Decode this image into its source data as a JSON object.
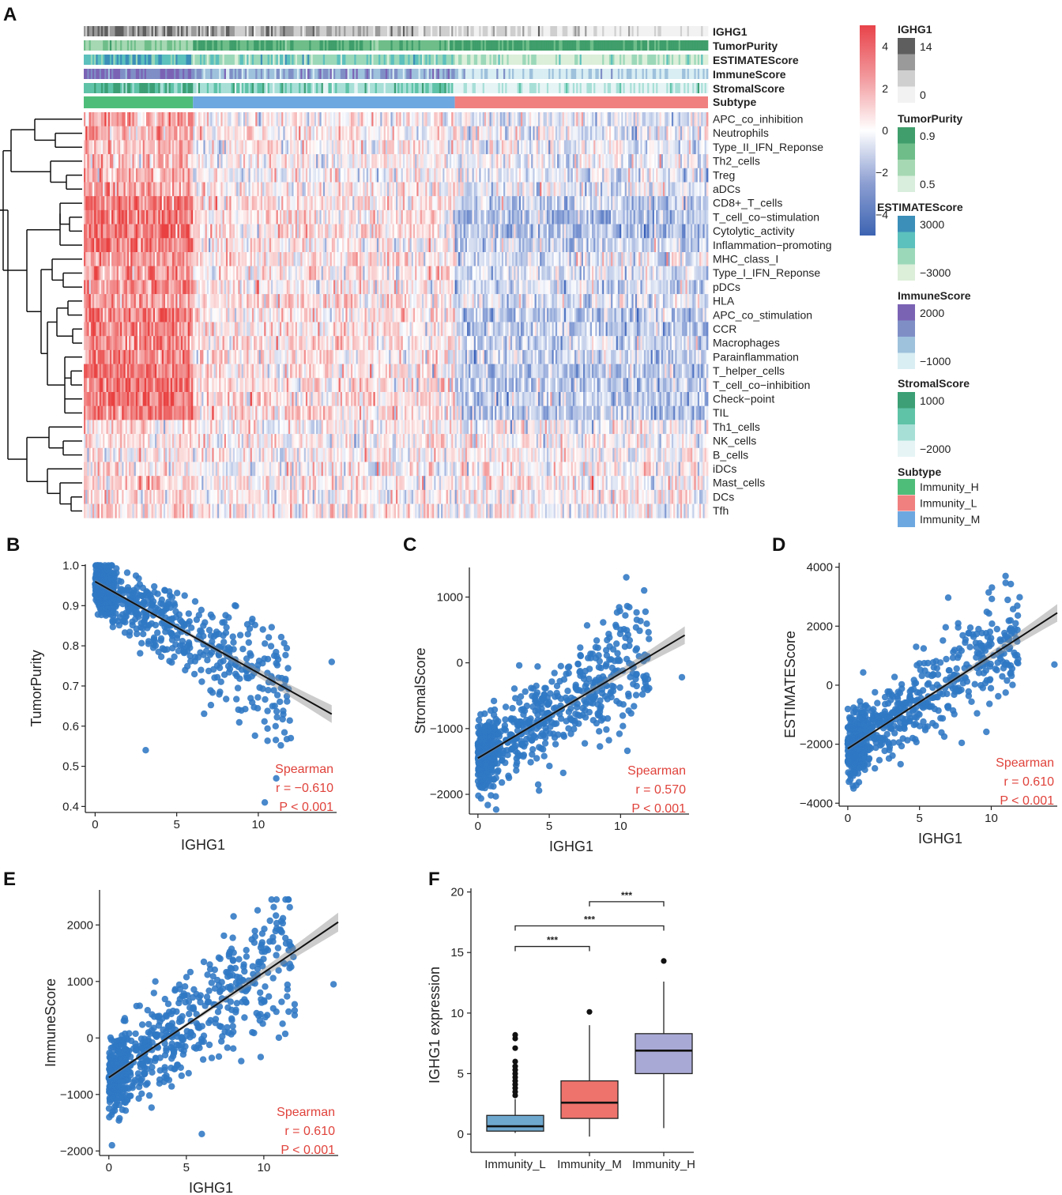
{
  "chart_data": [
    {
      "panel": "A",
      "type": "heatmap",
      "annotation_tracks": [
        "IGHG1",
        "TumorPurity",
        "ESTIMATEScore",
        "ImmuneScore",
        "StromalScore",
        "Subtype"
      ],
      "rows": [
        "APC_co_inhibition",
        "Neutrophils",
        "Type_II_IFN_Reponse",
        "Th2_cells",
        "Treg",
        "aDCs",
        "CD8+_T_cells",
        "T_cell_co−stimulation",
        "Cytolytic_activity",
        "Inflammation−promoting",
        "MHC_class_I",
        "Type_I_IFN_Reponse",
        "pDCs",
        "HLA",
        "APC_co_stimulation",
        "CCR",
        "Macrophages",
        "Parainflammation",
        "T_helper_cells",
        "T_cell_co−inhibition",
        "Check−point",
        "TIL",
        "Th1_cells",
        "NK_cells",
        "B_cells",
        "iDCs",
        "Mast_cells",
        "DCs",
        "Tfh"
      ],
      "subtype_blocks": [
        {
          "name": "Immunity_H",
          "fraction": 0.176
        },
        {
          "name": "Immunity_M",
          "fraction": 0.418
        },
        {
          "name": "Immunity_L",
          "fraction": 0.406
        }
      ],
      "colorbar": {
        "ticks": [
          "4",
          "2",
          "0",
          "−2",
          "−4"
        ],
        "values": [
          4,
          2,
          0,
          -2,
          -4
        ],
        "range": [
          -5,
          5
        ]
      },
      "legends": [
        {
          "title": "IGHG1",
          "labels": [
            "14",
            "0"
          ],
          "colors": [
            "#5e5e5e",
            "#9a9a9a",
            "#cfcfcf",
            "#f2f2f2"
          ]
        },
        {
          "title": "TumorPurity",
          "labels": [
            "0.9",
            "0.5"
          ],
          "colors": [
            "#3f9e6b",
            "#6fbe8a",
            "#a6d8b3",
            "#d9eedd"
          ]
        },
        {
          "title": "ESTIMATEScore",
          "labels": [
            "3000",
            "−3000"
          ],
          "colors": [
            "#3b8fb8",
            "#5cc0bd",
            "#9bd8b9",
            "#dcefd9"
          ]
        },
        {
          "title": "ImmuneScore",
          "labels": [
            "2000",
            "−1000"
          ],
          "colors": [
            "#7b63b4",
            "#7f8fc6",
            "#9ec1dc",
            "#d9eef3"
          ]
        },
        {
          "title": "StromalScore",
          "labels": [
            "1000",
            "−2000"
          ],
          "colors": [
            "#3c9f75",
            "#5fc3a8",
            "#a7dfd7",
            "#e6f4f5"
          ]
        },
        {
          "title": "Subtype",
          "labels": [
            "Immunity_H",
            "Immunity_L",
            "Immunity_M"
          ],
          "colors": [
            "#4fbd7a",
            "#f08080",
            "#6ea8e0"
          ]
        }
      ]
    },
    {
      "panel": "B",
      "type": "scatter",
      "xlabel": "IGHG1",
      "ylabel": "TumorPurity",
      "xlim": [
        -0.6,
        14.8
      ],
      "ylim": [
        0.385,
        1.003
      ],
      "xticks": [
        0,
        5,
        10
      ],
      "yticks": [
        0.4,
        0.5,
        0.6,
        0.7,
        0.8,
        0.9,
        1.0
      ],
      "ytick_labels": [
        "0.4",
        "0.5",
        "0.6",
        "0.7",
        "0.8",
        "0.9",
        "1.0"
      ],
      "fit_line": [
        [
          0,
          0.96
        ],
        [
          14.5,
          0.63
        ]
      ],
      "points_example": [
        [
          0.2,
          0.99
        ],
        [
          1.0,
          0.95
        ],
        [
          2.0,
          0.9
        ],
        [
          3.1,
          0.54
        ],
        [
          5.2,
          0.84
        ],
        [
          10.4,
          0.41
        ],
        [
          11.1,
          0.47
        ],
        [
          14.5,
          0.76
        ]
      ],
      "annotation": {
        "method": "Spearman",
        "r": "r = −0.610",
        "p": "P < 0.001"
      }
    },
    {
      "panel": "C",
      "type": "scatter",
      "xlabel": "IGHG1",
      "ylabel": "StromalScore",
      "xlim": [
        -0.6,
        14.8
      ],
      "ylim": [
        -2300,
        1450
      ],
      "xticks": [
        0,
        5,
        10
      ],
      "yticks": [
        -2000,
        -1000,
        0,
        1000
      ],
      "ytick_labels": [
        "−2000",
        "−1000",
        "0",
        "1000"
      ],
      "fit_line": [
        [
          0,
          -1450
        ],
        [
          14.5,
          420
        ]
      ],
      "points_example": [
        [
          0.3,
          -1900
        ],
        [
          2.5,
          -900
        ],
        [
          5.0,
          -600
        ],
        [
          10.4,
          1300
        ],
        [
          14.3,
          -220
        ]
      ],
      "annotation": {
        "method": "Spearman",
        "r": "r = 0.570",
        "p": "P < 0.001"
      }
    },
    {
      "panel": "D",
      "type": "scatter",
      "xlabel": "IGHG1",
      "ylabel": "ESTIMATEScore",
      "xlim": [
        -0.6,
        14.6
      ],
      "ylim": [
        -4100,
        4150
      ],
      "xticks": [
        0,
        5,
        10
      ],
      "yticks": [
        -4000,
        -2000,
        0,
        2000,
        4000
      ],
      "ytick_labels": [
        "−4000",
        "−2000",
        "0",
        "2000",
        "4000"
      ],
      "fit_line": [
        [
          0,
          -2150
        ],
        [
          14.6,
          2450
        ]
      ],
      "points_example": [
        [
          0.4,
          -3500
        ],
        [
          3.0,
          -500
        ],
        [
          6.0,
          600
        ],
        [
          11.0,
          3700
        ],
        [
          14.4,
          700
        ]
      ],
      "annotation": {
        "method": "Spearman",
        "r": "r = 0.610",
        "p": "P < 0.001"
      }
    },
    {
      "panel": "E",
      "type": "scatter",
      "xlabel": "IGHG1",
      "ylabel": "ImmuneScore",
      "xlim": [
        -0.6,
        14.8
      ],
      "ylim": [
        -2080,
        2620
      ],
      "xticks": [
        0,
        5,
        10
      ],
      "yticks": [
        -2000,
        -1000,
        0,
        1000,
        2000
      ],
      "ytick_labels": [
        "−2000",
        "−1000",
        "0",
        "1000",
        "2000"
      ],
      "fit_line": [
        [
          0,
          -700
        ],
        [
          14.8,
          2050
        ]
      ],
      "points_example": [
        [
          0.2,
          -1900
        ],
        [
          3.0,
          1000
        ],
        [
          6.0,
          -1700
        ],
        [
          10.5,
          2450
        ],
        [
          14.5,
          950
        ]
      ],
      "annotation": {
        "method": "Spearman",
        "r": "r = 0.610",
        "p": "P < 0.001"
      }
    },
    {
      "panel": "F",
      "type": "box",
      "xlabel": "",
      "ylabel": "IGHG1 expression",
      "categories": [
        "Immunity_L",
        "Immunity_M",
        "Immunity_H"
      ],
      "ylim": [
        -1.5,
        20.3
      ],
      "yticks": [
        0,
        5,
        10,
        15,
        20
      ],
      "ytick_labels": [
        "0",
        "5",
        "10",
        "15",
        "20"
      ],
      "boxes": [
        {
          "name": "Immunity_L",
          "whisker_low": 0.1,
          "q1": 0.25,
          "median": 0.65,
          "q3": 1.55,
          "whisker_high": 2.9,
          "outliers": [
            3.2,
            3.5,
            3.8,
            4.1,
            4.4,
            4.7,
            5.0,
            5.3,
            5.6,
            6.0,
            7.1,
            7.9,
            8.2
          ],
          "color": "#6fa8cf"
        },
        {
          "name": "Immunity_M",
          "whisker_low": -0.2,
          "q1": 1.3,
          "median": 2.6,
          "q3": 4.4,
          "whisker_high": 9.0,
          "outliers": [
            10.1
          ],
          "color": "#ee736c"
        },
        {
          "name": "Immunity_H",
          "whisker_low": 0.5,
          "q1": 5.0,
          "median": 6.9,
          "q3": 8.3,
          "whisker_high": 12.6,
          "outliers": [
            14.3
          ],
          "color": "#a9a9d6"
        }
      ],
      "significance": [
        {
          "from": "Immunity_M",
          "to": "Immunity_H",
          "y": 19.2,
          "label": "***"
        },
        {
          "from": "Immunity_L",
          "to": "Immunity_H",
          "y": 17.2,
          "label": "***"
        },
        {
          "from": "Immunity_L",
          "to": "Immunity_M",
          "y": 15.5,
          "label": "***"
        }
      ]
    }
  ]
}
